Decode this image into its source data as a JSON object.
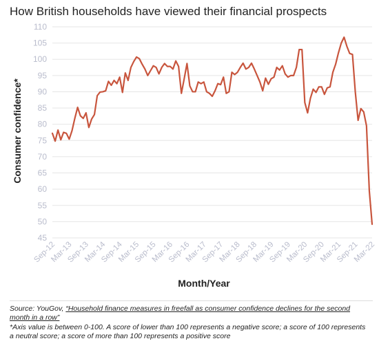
{
  "title": "How British households have viewed their financial prospects",
  "source": {
    "prefix": "Source: YouGov, ",
    "link_text": "“Household finance measures in freefall as consumer confidence declines for the second month in a row”"
  },
  "footnote": "*Axis value is between 0-100. A score of lower than 100 represents a negative score; a score of 100 represents a neutral score; a score of more than 100 represents a positive score",
  "colors": {
    "line": "#c8553d",
    "grid": "#e5e5e5",
    "tick": "#b9bccc",
    "axis_label": "#222222"
  },
  "chart_data": {
    "type": "line",
    "title": "How British households have viewed their financial prospects",
    "xlabel": "Month/Year",
    "ylabel": "Consumer confidence*",
    "ylim": [
      45,
      110
    ],
    "yticks": [
      45,
      50,
      55,
      60,
      65,
      70,
      75,
      80,
      85,
      90,
      95,
      100,
      105,
      110
    ],
    "xticks": [
      "Sep-12",
      "Mar-13",
      "Sep-13",
      "Mar-14",
      "Sep-14",
      "Mar-15",
      "Sep-15",
      "Mar-16",
      "Sep-16",
      "Mar-17",
      "Sep-17",
      "Mar-18",
      "Sep-18",
      "Mar-19",
      "Sep-19",
      "Mar-20",
      "Sep-20",
      "Mar-21",
      "Sep-21",
      "Mar-22"
    ],
    "x_start": "Sep-12",
    "x_end": "Mar-22",
    "grid": "horizontal",
    "series": [
      {
        "values": [
          77.2,
          74.8,
          78.2,
          75.2,
          77.5,
          77.2,
          75.4,
          78.0,
          81.8,
          85.2,
          82.6,
          81.8,
          83.5,
          79.0,
          81.6,
          83.0,
          88.8,
          89.9,
          90.0,
          90.3,
          93.2,
          92.0,
          93.5,
          92.5,
          94.5,
          89.8,
          95.8,
          93.5,
          97.5,
          99.3,
          100.7,
          100.2,
          98.5,
          97.0,
          95.0,
          96.5,
          98.0,
          97.5,
          95.5,
          97.5,
          98.7,
          97.8,
          97.8,
          97.0,
          99.5,
          97.8,
          89.5,
          94.0,
          98.7,
          91.8,
          90.0,
          90.0,
          93.0,
          92.5,
          93.0,
          90.0,
          89.5,
          88.6,
          90.3,
          92.5,
          92.2,
          94.5,
          89.5,
          90.0,
          96.0,
          95.3,
          96.0,
          97.5,
          98.8,
          97.0,
          97.5,
          98.8,
          97.0,
          95.0,
          93.0,
          90.3,
          94.2,
          92.3,
          94.0,
          94.5,
          97.5,
          96.7,
          98.0,
          95.5,
          94.5,
          95.0,
          95.0,
          97.5,
          103.0,
          103.0,
          86.7,
          83.5,
          88.0,
          90.8,
          89.8,
          91.5,
          91.5,
          89.2,
          91.2,
          91.5,
          96.0,
          98.5,
          102.0,
          105.0,
          106.8,
          104.0,
          101.8,
          101.5,
          90.0,
          81.2,
          84.8,
          83.8,
          79.5,
          59.5,
          49.2
        ]
      }
    ]
  }
}
